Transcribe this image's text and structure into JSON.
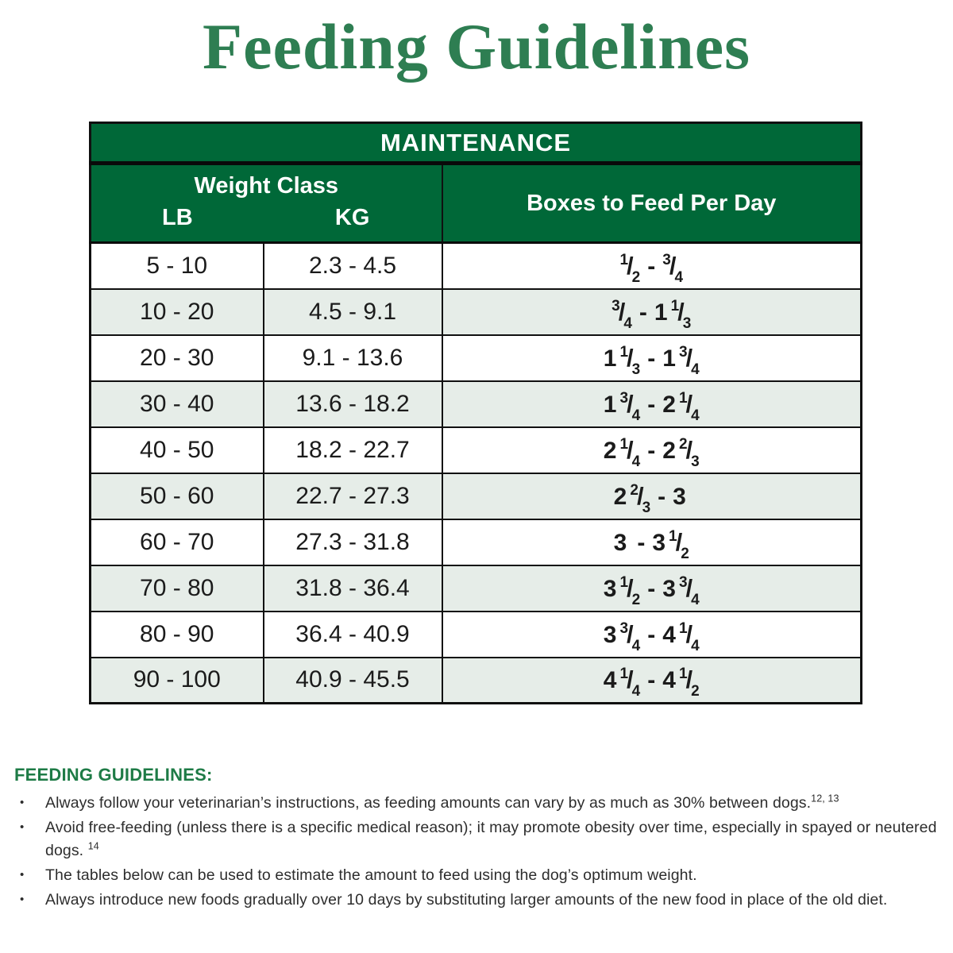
{
  "title": "Feeding Guidelines",
  "colors": {
    "header_green": "#006838",
    "title_green": "#2E7E52",
    "footer_heading_green": "#1E7B46",
    "alt_row": "#E6EDE8",
    "border": "#101010"
  },
  "table": {
    "main_header": "MAINTENANCE",
    "weight_class_header": "Weight Class",
    "lb_label": "LB",
    "kg_label": "KG",
    "boxes_header": "Boxes to Feed Per Day",
    "range_separator": "-",
    "rows": [
      {
        "lb": "5 - 10",
        "kg": "2.3 - 4.5",
        "boxes": [
          {
            "n": "1",
            "d": "2"
          },
          {
            "n": "3",
            "d": "4"
          }
        ]
      },
      {
        "lb": "10 - 20",
        "kg": "4.5 - 9.1",
        "boxes": [
          {
            "n": "3",
            "d": "4"
          },
          {
            "w": "1",
            "n": "1",
            "d": "3"
          }
        ]
      },
      {
        "lb": "20 - 30",
        "kg": "9.1 - 13.6",
        "boxes": [
          {
            "w": "1",
            "n": "1",
            "d": "3"
          },
          {
            "w": "1",
            "n": "3",
            "d": "4"
          }
        ]
      },
      {
        "lb": "30 - 40",
        "kg": "13.6 - 18.2",
        "boxes": [
          {
            "w": "1",
            "n": "3",
            "d": "4"
          },
          {
            "w": "2",
            "n": "1",
            "d": "4"
          }
        ]
      },
      {
        "lb": "40 - 50",
        "kg": "18.2 - 22.7",
        "boxes": [
          {
            "w": "2",
            "n": "1",
            "d": "4"
          },
          {
            "w": "2",
            "n": "2",
            "d": "3"
          }
        ]
      },
      {
        "lb": "50 - 60",
        "kg": "22.7 - 27.3",
        "boxes": [
          {
            "w": "2",
            "n": "2",
            "d": "3"
          },
          {
            "w": "3"
          }
        ]
      },
      {
        "lb": "60 - 70",
        "kg": "27.3 - 31.8",
        "boxes": [
          {
            "w": "3"
          },
          {
            "w": "3",
            "n": "1",
            "d": "2"
          }
        ]
      },
      {
        "lb": "70 - 80",
        "kg": "31.8 - 36.4",
        "boxes": [
          {
            "w": "3",
            "n": "1",
            "d": "2"
          },
          {
            "w": "3",
            "n": "3",
            "d": "4"
          }
        ]
      },
      {
        "lb": "80 - 90",
        "kg": "36.4 - 40.9",
        "boxes": [
          {
            "w": "3",
            "n": "3",
            "d": "4"
          },
          {
            "w": "4",
            "n": "1",
            "d": "4"
          }
        ]
      },
      {
        "lb": "90 - 100",
        "kg": "40.9 - 45.5",
        "boxes": [
          {
            "w": "4",
            "n": "1",
            "d": "4"
          },
          {
            "w": "4",
            "n": "1",
            "d": "2"
          }
        ]
      }
    ]
  },
  "footer": {
    "heading": "FEEDING GUIDELINES:",
    "bullet_glyph": "•",
    "bullets": [
      {
        "text": "Always follow your veterinarian’s instructions, as feeding amounts can vary by as much as 30% between dogs.",
        "sup": "12, 13"
      },
      {
        "text": "Avoid free-feeding (unless there is a specific medical reason); it may promote obesity over time, especially in spayed or neutered dogs. ",
        "sup": "14"
      },
      {
        "text": "The tables below can be used to estimate the amount to feed using the dog’s optimum weight.",
        "sup": ""
      },
      {
        "text": "Always introduce new foods gradually over 10 days by substituting larger amounts of the new food in place of the old diet.",
        "sup": ""
      }
    ]
  }
}
